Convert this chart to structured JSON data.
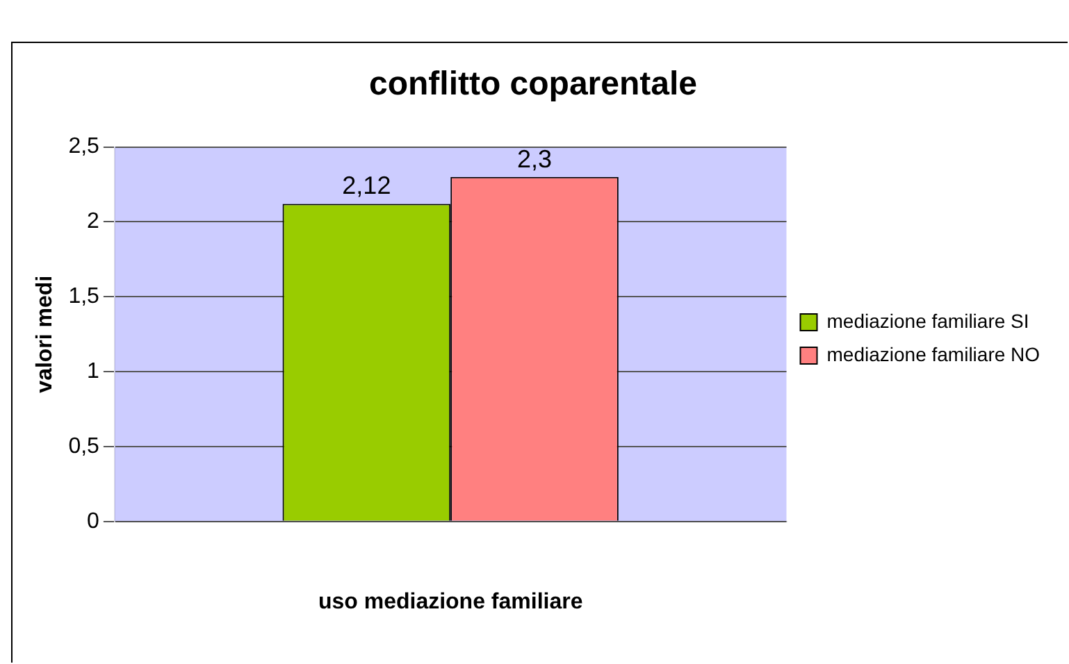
{
  "chart_data": {
    "type": "bar",
    "title": "conflitto coparentale",
    "xlabel": "uso mediazione familiare",
    "ylabel": "valori medi",
    "categories": [
      null
    ],
    "series": [
      {
        "name": "mediazione familiare SI",
        "color": "#99cc00",
        "values": [
          2.12
        ],
        "value_labels": [
          "2,12"
        ]
      },
      {
        "name": "mediazione familiare NO",
        "color": "#ff8080",
        "values": [
          2.3
        ],
        "value_labels": [
          "2,3"
        ]
      }
    ],
    "ylim": [
      0,
      2.5
    ],
    "yticks": [
      0,
      {
        "value": 0.5,
        "label": "0,5"
      },
      1,
      {
        "value": 1.5,
        "label": "1,5"
      },
      2,
      {
        "value": 2.5,
        "label": "2,5"
      }
    ],
    "grid": "y",
    "legend": "right"
  }
}
